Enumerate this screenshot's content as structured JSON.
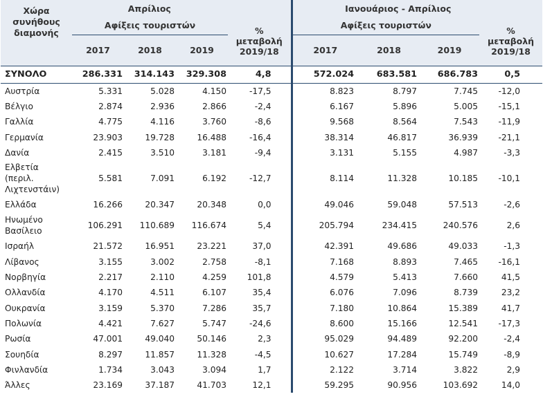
{
  "header": {
    "country_col": "Χώρα συνήθους διαμονής",
    "period1": "Απρίλιος",
    "period2": "Ιανουάριος - Απρίλιος",
    "arrivals_label": "Αφίξεις τουριστών",
    "change_label_line1": "%",
    "change_label_line2": "μεταβολή",
    "change_label_line3": "2019/18",
    "years": [
      "2017",
      "2018",
      "2019"
    ]
  },
  "total": {
    "label": "ΣΥΝΟΛΟ",
    "values": [
      "286.331",
      "314.143",
      "329.308",
      "4,8",
      "572.024",
      "683.581",
      "686.783",
      "0,5"
    ]
  },
  "rows": [
    {
      "country": "Αυστρία",
      "values": [
        "5.331",
        "5.028",
        "4.150",
        "-17,5",
        "8.823",
        "8.797",
        "7.745",
        "-12,0"
      ]
    },
    {
      "country": "Βέλγιο",
      "values": [
        "2.874",
        "2.936",
        "2.866",
        "-2,4",
        "6.167",
        "5.896",
        "5.005",
        "-15,1"
      ]
    },
    {
      "country": "Γαλλία",
      "values": [
        "4.775",
        "4.116",
        "3.760",
        "-8,6",
        "9.568",
        "8.564",
        "7.543",
        "-11,9"
      ]
    },
    {
      "country": "Γερμανία",
      "values": [
        "23.903",
        "19.728",
        "16.488",
        "-16,4",
        "38.314",
        "46.817",
        "36.939",
        "-21,1"
      ]
    },
    {
      "country": "Δανία",
      "values": [
        "2.415",
        "3.510",
        "3.181",
        "-9,4",
        "3.131",
        "5.155",
        "4.987",
        "-3,3"
      ]
    },
    {
      "country": "Ελβετία (περιλ. Λιχτενστάιν)",
      "values": [
        "5.581",
        "7.091",
        "6.192",
        "-12,7",
        "8.114",
        "11.328",
        "10.185",
        "-10,1"
      ]
    },
    {
      "country": "Ελλάδα",
      "values": [
        "16.266",
        "20.347",
        "20.348",
        "0,0",
        "49.046",
        "59.048",
        "57.513",
        "-2,6"
      ]
    },
    {
      "country": "Ηνωμένο Βασίλειο",
      "values": [
        "106.291",
        "110.689",
        "116.674",
        "5,4",
        "205.794",
        "234.415",
        "240.576",
        "2,6"
      ]
    },
    {
      "country": "Ισραήλ",
      "values": [
        "21.572",
        "16.951",
        "23.221",
        "37,0",
        "42.391",
        "49.686",
        "49.033",
        "-1,3"
      ]
    },
    {
      "country": "Λίβανος",
      "values": [
        "3.155",
        "3.002",
        "2.758",
        "-8,1",
        "7.168",
        "8.893",
        "7.465",
        "-16,1"
      ]
    },
    {
      "country": "Νορβηγία",
      "values": [
        "2.217",
        "2.110",
        "4.259",
        "101,8",
        "4.579",
        "5.413",
        "7.660",
        "41,5"
      ]
    },
    {
      "country": "Ολλανδία",
      "values": [
        "4.170",
        "4.511",
        "6.107",
        "35,4",
        "6.076",
        "7.096",
        "8.739",
        "23,2"
      ]
    },
    {
      "country": "Ουκρανία",
      "values": [
        "3.159",
        "5.370",
        "7.286",
        "35,7",
        "7.180",
        "10.864",
        "15.389",
        "41,7"
      ]
    },
    {
      "country": "Πολωνία",
      "values": [
        "4.421",
        "7.627",
        "5.747",
        "-24,6",
        "8.600",
        "15.166",
        "12.541",
        "-17,3"
      ]
    },
    {
      "country": "Ρωσία",
      "values": [
        "47.001",
        "49.040",
        "50.146",
        "2,3",
        "95.029",
        "94.489",
        "92.200",
        "-2,4"
      ]
    },
    {
      "country": "Σουηδία",
      "values": [
        "8.297",
        "11.857",
        "11.328",
        "-4,5",
        "10.627",
        "17.284",
        "15.749",
        "-8,9"
      ]
    },
    {
      "country": "Φινλανδία",
      "values": [
        "1.734",
        "3.043",
        "3.094",
        "1,7",
        "2.122",
        "3.714",
        "3.822",
        "2,9"
      ]
    },
    {
      "country": "Άλλες",
      "values": [
        "23.169",
        "37.187",
        "41.703",
        "12,1",
        "59.295",
        "90.956",
        "103.692",
        "14,0"
      ]
    }
  ]
}
